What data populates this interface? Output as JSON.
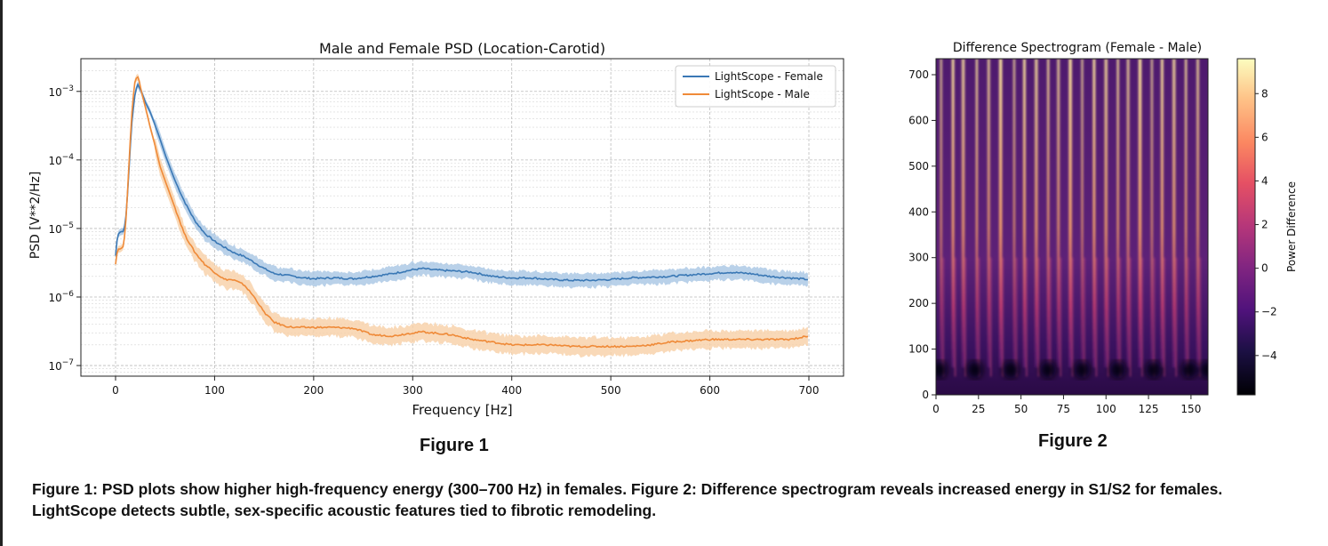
{
  "figure_labels": {
    "fig1": "Figure 1",
    "fig2": "Figure 2"
  },
  "caption": "Figure 1: PSD plots show higher high-frequency energy (300–700 Hz) in females. Figure 2: Difference spectrogram reveals increased energy in S1/S2 for females. LightScope detects subtle, sex-specific acoustic features tied to fibrotic remodeling.",
  "colors": {
    "female": "#3a78b5",
    "male": "#ef8a38",
    "female_band": "#a8c6e3",
    "male_band": "#f8cfa6"
  },
  "chart_data": [
    {
      "type": "line",
      "title": "Male and Female PSD (Location-Carotid)",
      "xlabel": "Frequency [Hz]",
      "ylabel": "PSD [V**2/Hz]",
      "xlim": [
        -35,
        735
      ],
      "ylim": [
        7e-08,
        0.003
      ],
      "yscale": "log",
      "xticks": [
        0,
        100,
        200,
        300,
        400,
        500,
        600,
        700
      ],
      "yticks": [
        {
          "exp": "-7",
          "v": 1e-07
        },
        {
          "exp": "-6",
          "v": 1e-06
        },
        {
          "exp": "-5",
          "v": 1e-05
        },
        {
          "exp": "-4",
          "v": 0.0001
        },
        {
          "exp": "-3",
          "v": 0.001
        }
      ],
      "grid": true,
      "legend": "top-right",
      "series": [
        {
          "name": "LightScope - Female",
          "x": [
            0,
            2,
            5,
            8,
            10,
            13,
            16,
            19,
            22,
            26,
            30,
            35,
            40,
            45,
            50,
            60,
            70,
            80,
            90,
            100,
            110,
            120,
            130,
            140,
            150,
            160,
            170,
            180,
            190,
            200,
            220,
            240,
            260,
            280,
            300,
            310,
            320,
            340,
            360,
            380,
            400,
            420,
            440,
            460,
            480,
            500,
            520,
            540,
            560,
            580,
            600,
            620,
            640,
            660,
            680,
            700
          ],
          "values": [
            4e-06,
            8e-06,
            9e-06,
            9e-06,
            1.2e-05,
            5e-05,
            0.0003,
            0.0008,
            0.0013,
            0.001,
            0.0007,
            0.0005,
            0.00032,
            0.0002,
            0.00012,
            5e-05,
            2.4e-05,
            1.3e-05,
            8.5e-06,
            6.5e-06,
            5.3e-06,
            4.4e-06,
            3.9e-06,
            3.2e-06,
            2.6e-06,
            2.2e-06,
            2.1e-06,
            2e-06,
            1.9e-06,
            1.85e-06,
            1.9e-06,
            1.85e-06,
            2e-06,
            2.2e-06,
            2.5e-06,
            2.6e-06,
            2.5e-06,
            2.4e-06,
            2.3e-06,
            2e-06,
            1.9e-06,
            1.9e-06,
            1.8e-06,
            1.75e-06,
            1.75e-06,
            1.8e-06,
            1.9e-06,
            1.95e-06,
            2e-06,
            2.1e-06,
            2.2e-06,
            2.3e-06,
            2.2e-06,
            2e-06,
            1.9e-06,
            1.8e-06
          ]
        },
        {
          "name": "LightScope - Male",
          "x": [
            0,
            2,
            5,
            8,
            10,
            13,
            16,
            19,
            22,
            24,
            26,
            30,
            35,
            40,
            45,
            50,
            60,
            70,
            80,
            90,
            100,
            110,
            115,
            120,
            130,
            140,
            150,
            160,
            170,
            180,
            190,
            200,
            220,
            240,
            260,
            280,
            300,
            310,
            320,
            340,
            360,
            380,
            400,
            420,
            440,
            460,
            480,
            500,
            520,
            540,
            560,
            580,
            600,
            620,
            640,
            660,
            680,
            700
          ],
          "values": [
            3e-06,
            5e-06,
            5e-06,
            5.5e-06,
            1e-05,
            6e-05,
            0.0004,
            0.0013,
            0.0017,
            0.0014,
            0.001,
            0.0006,
            0.0003,
            0.00016,
            8e-05,
            5e-05,
            2e-05,
            8e-06,
            4.5e-06,
            3e-06,
            2.3e-06,
            1.8e-06,
            1.8e-06,
            1.75e-06,
            1.5e-06,
            1e-06,
            6e-07,
            4.3e-07,
            3.8e-07,
            3.6e-07,
            3.6e-07,
            3.6e-07,
            3.6e-07,
            3.5e-07,
            2.8e-07,
            2.7e-07,
            3e-07,
            3.1e-07,
            3e-07,
            2.8e-07,
            2.4e-07,
            2.2e-07,
            2e-07,
            2e-07,
            2e-07,
            1.9e-07,
            1.9e-07,
            1.9e-07,
            1.9e-07,
            2e-07,
            2.2e-07,
            2.3e-07,
            2.4e-07,
            2.4e-07,
            2.4e-07,
            2.4e-07,
            2.4e-07,
            2.7e-07
          ]
        }
      ]
    },
    {
      "type": "heatmap",
      "title": "Difference Spectrogram (Female - Male)",
      "xlim": [
        0,
        160
      ],
      "ylim": [
        0,
        735
      ],
      "xticks": [
        0,
        25,
        50,
        75,
        100,
        125,
        150
      ],
      "yticks": [
        0,
        100,
        200,
        300,
        400,
        500,
        600,
        700
      ],
      "colorbar": {
        "label": "Power Difference",
        "range": [
          -5.8,
          9.6
        ],
        "ticks": [
          {
            "v": -4,
            "t": "−4"
          },
          {
            "v": -2,
            "t": "−2"
          },
          {
            "v": 0,
            "t": "0"
          },
          {
            "v": 2,
            "t": "2"
          },
          {
            "v": 4,
            "t": "4"
          },
          {
            "v": 6,
            "t": "6"
          },
          {
            "v": 8,
            "t": "8"
          }
        ]
      },
      "colormap": "magma",
      "bright_stripe_x": [
        3,
        10,
        16,
        24,
        31,
        38,
        46,
        52,
        59,
        66,
        72,
        79,
        86,
        93,
        100,
        107,
        113,
        120,
        127,
        133,
        140,
        147,
        154
      ],
      "dark_spots_x": [
        2,
        23,
        44,
        66,
        86,
        107,
        128,
        149,
        160
      ],
      "dark_spot_y": 55
    }
  ]
}
